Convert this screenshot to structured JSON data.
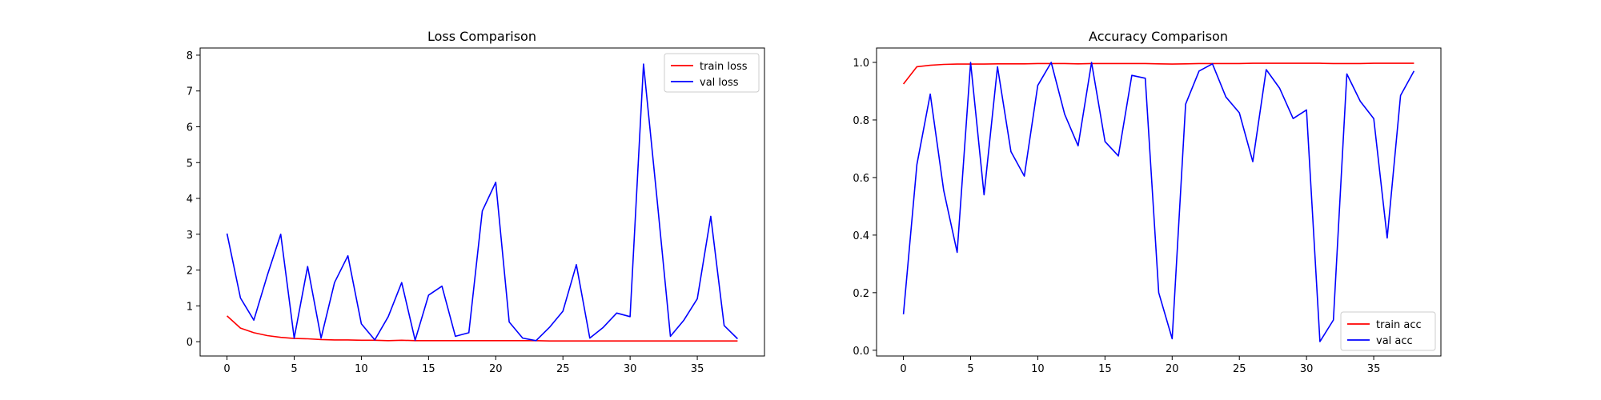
{
  "chart_data": [
    {
      "type": "line",
      "title": "Loss Comparison",
      "xlabel": "",
      "ylabel": "",
      "xlim": [
        -2,
        40
      ],
      "ylim": [
        -0.4,
        8.2
      ],
      "xticks": [
        0,
        5,
        10,
        15,
        20,
        25,
        30,
        35
      ],
      "yticks": [
        0,
        1,
        2,
        3,
        4,
        5,
        6,
        7,
        8
      ],
      "legend_position": "top-right",
      "grid": false,
      "series": [
        {
          "name": "train loss",
          "color": "#ff0000",
          "x": [
            0,
            1,
            2,
            3,
            4,
            5,
            6,
            7,
            8,
            9,
            10,
            11,
            12,
            13,
            14,
            15,
            16,
            17,
            18,
            19,
            20,
            21,
            22,
            23,
            24,
            25,
            26,
            27,
            28,
            29,
            30,
            31,
            32,
            33,
            34,
            35,
            36,
            37,
            38
          ],
          "y": [
            0.72,
            0.38,
            0.25,
            0.17,
            0.12,
            0.09,
            0.08,
            0.06,
            0.05,
            0.05,
            0.04,
            0.04,
            0.03,
            0.04,
            0.03,
            0.03,
            0.03,
            0.03,
            0.03,
            0.03,
            0.03,
            0.03,
            0.03,
            0.03,
            0.02,
            0.02,
            0.02,
            0.02,
            0.02,
            0.02,
            0.02,
            0.02,
            0.02,
            0.02,
            0.02,
            0.02,
            0.02,
            0.02,
            0.02
          ]
        },
        {
          "name": "val loss",
          "color": "#0000ff",
          "x": [
            0,
            1,
            2,
            3,
            4,
            5,
            6,
            7,
            8,
            9,
            10,
            11,
            12,
            13,
            14,
            15,
            16,
            17,
            18,
            19,
            20,
            21,
            22,
            23,
            24,
            25,
            26,
            27,
            28,
            29,
            30,
            31,
            32,
            33,
            34,
            35,
            36,
            37,
            38
          ],
          "y": [
            3.02,
            1.22,
            0.6,
            1.85,
            3.0,
            0.1,
            2.1,
            0.1,
            1.65,
            2.4,
            0.5,
            0.05,
            0.7,
            1.65,
            0.04,
            1.3,
            1.55,
            0.15,
            0.25,
            3.65,
            4.45,
            0.55,
            0.1,
            0.03,
            0.4,
            0.85,
            2.15,
            0.1,
            0.4,
            0.8,
            0.7,
            7.75,
            4.0,
            0.15,
            0.6,
            1.2,
            3.5,
            0.45,
            0.08
          ]
        }
      ]
    },
    {
      "type": "line",
      "title": "Accuracy Comparison",
      "xlabel": "",
      "ylabel": "",
      "xlim": [
        -2,
        40
      ],
      "ylim": [
        -0.02,
        1.05
      ],
      "xticks": [
        0,
        5,
        10,
        15,
        20,
        25,
        30,
        35
      ],
      "yticks": [
        0.0,
        0.2,
        0.4,
        0.6,
        0.8,
        1.0
      ],
      "ytick_labels": [
        "0.0",
        "0.2",
        "0.4",
        "0.6",
        "0.8",
        "1.0"
      ],
      "legend_position": "bottom-right",
      "grid": false,
      "series": [
        {
          "name": "train acc",
          "color": "#ff0000",
          "x": [
            0,
            1,
            2,
            3,
            4,
            5,
            6,
            7,
            8,
            9,
            10,
            11,
            12,
            13,
            14,
            15,
            16,
            17,
            18,
            19,
            20,
            21,
            22,
            23,
            24,
            25,
            26,
            27,
            28,
            29,
            30,
            31,
            32,
            33,
            34,
            35,
            36,
            37,
            38
          ],
          "y": [
            0.925,
            0.985,
            0.99,
            0.993,
            0.994,
            0.994,
            0.994,
            0.995,
            0.995,
            0.995,
            0.996,
            0.996,
            0.996,
            0.995,
            0.996,
            0.996,
            0.996,
            0.996,
            0.996,
            0.995,
            0.994,
            0.995,
            0.996,
            0.996,
            0.996,
            0.996,
            0.997,
            0.997,
            0.997,
            0.997,
            0.997,
            0.997,
            0.996,
            0.996,
            0.996,
            0.997,
            0.997,
            0.997,
            0.997
          ]
        },
        {
          "name": "val acc",
          "color": "#0000ff",
          "x": [
            0,
            1,
            2,
            3,
            4,
            5,
            6,
            7,
            8,
            9,
            10,
            11,
            12,
            13,
            14,
            15,
            16,
            17,
            18,
            19,
            20,
            21,
            22,
            23,
            24,
            25,
            26,
            27,
            28,
            29,
            30,
            31,
            32,
            33,
            34,
            35,
            36,
            37,
            38
          ],
          "y": [
            0.125,
            0.645,
            0.89,
            0.555,
            0.34,
            1.0,
            0.54,
            0.985,
            0.69,
            0.605,
            0.92,
            1.0,
            0.82,
            0.71,
            1.0,
            0.725,
            0.675,
            0.955,
            0.945,
            0.2,
            0.04,
            0.855,
            0.97,
            0.995,
            0.88,
            0.825,
            0.655,
            0.975,
            0.91,
            0.805,
            0.835,
            0.03,
            0.105,
            0.96,
            0.865,
            0.805,
            0.39,
            0.885,
            0.97
          ]
        }
      ]
    }
  ]
}
